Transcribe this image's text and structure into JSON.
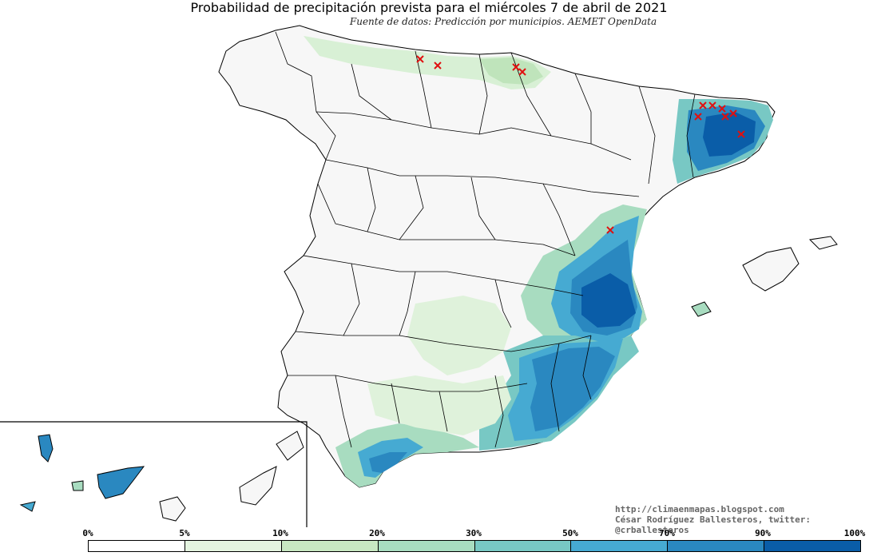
{
  "title": "Probabilidad de precipitación prevista para el miércoles 7 de abril de 2021",
  "subtitle": "Fuente de datos: Predicción por municipios. AEMET OpenData",
  "credits": {
    "url": "http://climaenmapas.blogspot.com",
    "author": "César Rodríguez Ballesteros, twitter: @crballesteros"
  },
  "legend": {
    "ticks": [
      "0%",
      "5%",
      "10%",
      "20%",
      "30%",
      "50%",
      "70%",
      "90%",
      "100%"
    ],
    "colors": [
      "#ffffff",
      "#e4f4e0",
      "#c8e8c2",
      "#a8dcc0",
      "#78c8c4",
      "#46aad2",
      "#2a88c0",
      "#0a5da8"
    ]
  },
  "colors": {
    "land": "#f7f7f7",
    "border": "#000000",
    "markers": "#e01010"
  }
}
